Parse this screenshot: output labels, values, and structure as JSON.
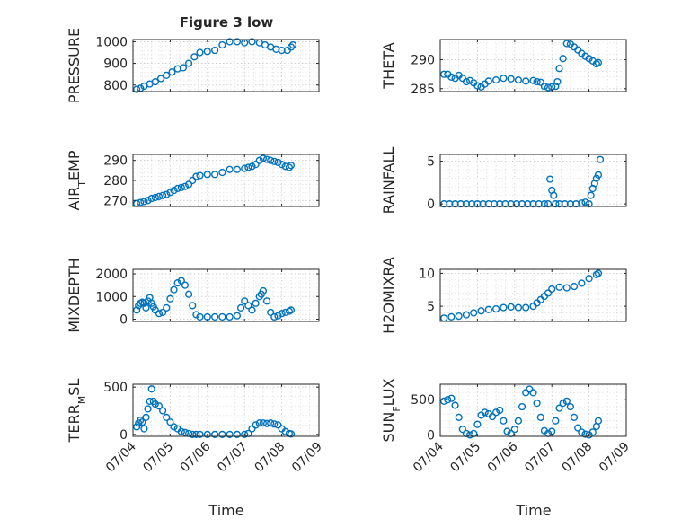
{
  "figure": {
    "title": "Figure 3 low"
  },
  "colors": {
    "marker": "#0072BD",
    "axis": "#262626",
    "grid": "#c9c9c9"
  },
  "chart_data": [
    {
      "type": "scatter",
      "ylabel": "PRESSURE",
      "ylim": [
        770,
        1010
      ],
      "yticks": [
        800,
        900,
        1000
      ],
      "xticks": [
        "07/04",
        "07/05",
        "07/06",
        "07/07",
        "07/08",
        "07/09"
      ],
      "grid": true,
      "x": [
        4.1,
        4.2,
        4.3,
        4.45,
        4.6,
        4.75,
        4.9,
        5.05,
        5.2,
        5.35,
        5.5,
        5.65,
        5.8,
        6.0,
        6.2,
        6.4,
        6.6,
        6.8,
        7.0,
        7.2,
        7.4,
        7.55,
        7.7,
        7.85,
        8.0,
        8.15,
        8.25,
        8.3
      ],
      "y": [
        780,
        785,
        795,
        805,
        815,
        830,
        845,
        860,
        875,
        880,
        900,
        930,
        950,
        955,
        960,
        985,
        1000,
        1000,
        995,
        1000,
        995,
        985,
        975,
        965,
        960,
        960,
        975,
        985
      ]
    },
    {
      "type": "scatter",
      "ylabel": "THETA",
      "ylim": [
        284.5,
        293.5
      ],
      "yticks": [
        285,
        290
      ],
      "xticks": [
        "07/04",
        "07/05",
        "07/06",
        "07/07",
        "07/08",
        "07/09"
      ],
      "grid": true,
      "x": [
        4.1,
        4.2,
        4.3,
        4.4,
        4.5,
        4.6,
        4.7,
        4.8,
        4.9,
        5.0,
        5.1,
        5.2,
        5.3,
        5.5,
        5.7,
        5.9,
        6.1,
        6.3,
        6.5,
        6.6,
        6.7,
        6.8,
        6.9,
        7.0,
        7.1,
        7.15,
        7.2,
        7.3,
        7.4,
        7.5,
        7.6,
        7.7,
        7.8,
        7.9,
        8.0,
        8.1,
        8.2,
        8.25
      ],
      "y": [
        287.5,
        287.5,
        287.0,
        286.8,
        287.3,
        286.8,
        286.2,
        286.4,
        286.0,
        285.5,
        285.3,
        285.8,
        286.3,
        286.5,
        286.8,
        286.7,
        286.5,
        286.3,
        286.4,
        286.2,
        286.1,
        285.4,
        285.2,
        285.3,
        285.4,
        286.2,
        288.5,
        290.2,
        292.8,
        292.7,
        292.2,
        291.7,
        291.1,
        290.6,
        290.2,
        289.8,
        289.3,
        289.5
      ]
    },
    {
      "type": "scatter",
      "ylabel": "AIR_T_EMP",
      "ylim": [
        267,
        293
      ],
      "yticks": [
        270,
        280,
        290
      ],
      "xticks": [
        "07/04",
        "07/05",
        "07/06",
        "07/07",
        "07/08",
        "07/09"
      ],
      "grid": true,
      "x": [
        4.1,
        4.2,
        4.3,
        4.4,
        4.5,
        4.6,
        4.7,
        4.8,
        4.9,
        5.0,
        5.1,
        5.2,
        5.3,
        5.4,
        5.5,
        5.6,
        5.7,
        5.8,
        6.0,
        6.2,
        6.4,
        6.6,
        6.8,
        7.0,
        7.1,
        7.2,
        7.3,
        7.4,
        7.5,
        7.6,
        7.7,
        7.8,
        7.9,
        8.0,
        8.1,
        8.2,
        8.25
      ],
      "y": [
        268.5,
        269.0,
        269.5,
        270.0,
        271.0,
        271.5,
        272.0,
        272.5,
        273.0,
        274.0,
        275.0,
        276.0,
        276.5,
        277.0,
        278.0,
        280.0,
        282.0,
        282.5,
        283.0,
        283.0,
        284.0,
        285.5,
        285.5,
        286.0,
        286.5,
        287.0,
        288.0,
        290.0,
        291.0,
        290.5,
        290.0,
        289.5,
        289.0,
        288.0,
        287.0,
        286.5,
        287.5
      ]
    },
    {
      "type": "scatter",
      "ylabel": "RAINFALL",
      "ylim": [
        -0.3,
        5.8
      ],
      "yticks": [
        0,
        5
      ],
      "xticks": [
        "07/04",
        "07/05",
        "07/06",
        "07/07",
        "07/08",
        "07/09"
      ],
      "grid": true,
      "x": [
        4.1,
        4.25,
        4.4,
        4.55,
        4.7,
        4.85,
        5.0,
        5.15,
        5.3,
        5.45,
        5.6,
        5.75,
        5.9,
        6.05,
        6.2,
        6.35,
        6.5,
        6.65,
        6.8,
        6.9,
        6.95,
        7.0,
        7.05,
        7.1,
        7.2,
        7.35,
        7.5,
        7.65,
        7.8,
        7.9,
        8.0,
        8.05,
        8.1,
        8.15,
        8.2,
        8.25,
        8.3
      ],
      "y": [
        0,
        0,
        0,
        0,
        0,
        0,
        0,
        0,
        0,
        0,
        0,
        0,
        0,
        0,
        0,
        0,
        0,
        0,
        0,
        0,
        2.9,
        1.6,
        1.0,
        0,
        0,
        0,
        0,
        0,
        0.1,
        0.2,
        0,
        1.0,
        1.8,
        2.4,
        3.0,
        3.4,
        5.2
      ]
    },
    {
      "type": "scatter",
      "ylabel": "MIXDEPTH",
      "ylim": [
        -100,
        2200
      ],
      "yticks": [
        0,
        1000,
        2000
      ],
      "xticks": [
        "07/04",
        "07/05",
        "07/06",
        "07/07",
        "07/08",
        "07/09"
      ],
      "grid": true,
      "x": [
        4.1,
        4.15,
        4.2,
        4.25,
        4.3,
        4.35,
        4.4,
        4.45,
        4.5,
        4.55,
        4.6,
        4.7,
        4.8,
        4.9,
        5.0,
        5.1,
        5.2,
        5.3,
        5.4,
        5.5,
        5.6,
        5.7,
        5.8,
        6.0,
        6.2,
        6.4,
        6.6,
        6.8,
        6.9,
        7.0,
        7.1,
        7.2,
        7.3,
        7.4,
        7.45,
        7.5,
        7.6,
        7.7,
        7.8,
        7.9,
        8.0,
        8.1,
        8.2,
        8.25
      ],
      "y": [
        400,
        600,
        700,
        750,
        700,
        500,
        800,
        950,
        700,
        550,
        400,
        250,
        300,
        500,
        900,
        1300,
        1600,
        1700,
        1500,
        1100,
        600,
        200,
        100,
        100,
        100,
        100,
        100,
        150,
        500,
        800,
        600,
        400,
        700,
        1000,
        1100,
        1250,
        800,
        300,
        100,
        150,
        250,
        300,
        350,
        400
      ]
    },
    {
      "type": "scatter",
      "ylabel": "H2OMIXRA",
      "ylim": [
        2.7,
        10.6
      ],
      "yticks": [
        5,
        10
      ],
      "xticks": [
        "07/04",
        "07/05",
        "07/06",
        "07/07",
        "07/08",
        "07/09"
      ],
      "grid": true,
      "x": [
        4.1,
        4.3,
        4.5,
        4.7,
        4.9,
        5.1,
        5.3,
        5.5,
        5.7,
        5.9,
        6.1,
        6.3,
        6.5,
        6.6,
        6.7,
        6.8,
        6.9,
        7.0,
        7.2,
        7.4,
        7.6,
        7.8,
        8.0,
        8.2,
        8.25
      ],
      "y": [
        3.2,
        3.4,
        3.5,
        3.7,
        4.0,
        4.3,
        4.5,
        4.6,
        4.8,
        4.9,
        4.8,
        4.8,
        5.0,
        5.5,
        6.0,
        6.5,
        7.0,
        7.6,
        7.9,
        7.8,
        8.0,
        8.5,
        9.2,
        9.8,
        10.0
      ]
    },
    {
      "type": "scatter",
      "ylabel": "TERR_M_SL",
      "ylim": [
        -20,
        530
      ],
      "yticks": [
        0,
        500
      ],
      "xticks": [
        "07/04",
        "07/05",
        "07/06",
        "07/07",
        "07/08",
        "07/09"
      ],
      "grid": true,
      "x": [
        4.1,
        4.15,
        4.2,
        4.25,
        4.3,
        4.35,
        4.4,
        4.45,
        4.5,
        4.55,
        4.6,
        4.7,
        4.8,
        4.9,
        5.0,
        5.1,
        5.2,
        5.3,
        5.4,
        5.5,
        5.6,
        5.7,
        5.8,
        6.0,
        6.2,
        6.4,
        6.6,
        6.8,
        7.0,
        7.1,
        7.2,
        7.3,
        7.4,
        7.5,
        7.6,
        7.7,
        7.8,
        7.9,
        8.0,
        8.1,
        8.2,
        8.25
      ],
      "y": [
        80,
        120,
        150,
        130,
        60,
        180,
        270,
        350,
        480,
        350,
        320,
        300,
        250,
        180,
        130,
        80,
        60,
        30,
        20,
        10,
        0,
        0,
        0,
        0,
        0,
        0,
        0,
        0,
        0,
        10,
        60,
        100,
        120,
        120,
        115,
        120,
        110,
        100,
        60,
        30,
        10,
        5
      ]
    },
    {
      "type": "scatter",
      "ylabel": "SUN_F_LUX",
      "ylim": [
        -20,
        720
      ],
      "yticks": [
        0,
        500
      ],
      "xticks": [
        "07/04",
        "07/05",
        "07/06",
        "07/07",
        "07/08",
        "07/09"
      ],
      "grid": true,
      "x": [
        4.1,
        4.2,
        4.3,
        4.4,
        4.5,
        4.6,
        4.7,
        4.8,
        4.9,
        5.0,
        5.1,
        5.2,
        5.3,
        5.4,
        5.5,
        5.6,
        5.7,
        5.8,
        5.9,
        6.0,
        6.1,
        6.2,
        6.3,
        6.4,
        6.5,
        6.6,
        6.7,
        6.8,
        6.9,
        7.0,
        7.1,
        7.2,
        7.3,
        7.4,
        7.5,
        7.6,
        7.7,
        7.8,
        7.9,
        8.0,
        8.1,
        8.2,
        8.25
      ],
      "y": [
        480,
        500,
        520,
        420,
        250,
        80,
        20,
        0,
        20,
        150,
        280,
        320,
        300,
        260,
        320,
        350,
        200,
        50,
        20,
        80,
        200,
        400,
        600,
        650,
        600,
        450,
        250,
        60,
        20,
        50,
        200,
        380,
        450,
        480,
        400,
        250,
        100,
        40,
        10,
        0,
        40,
        120,
        200
      ]
    }
  ],
  "x_axis": {
    "label": "Time"
  }
}
